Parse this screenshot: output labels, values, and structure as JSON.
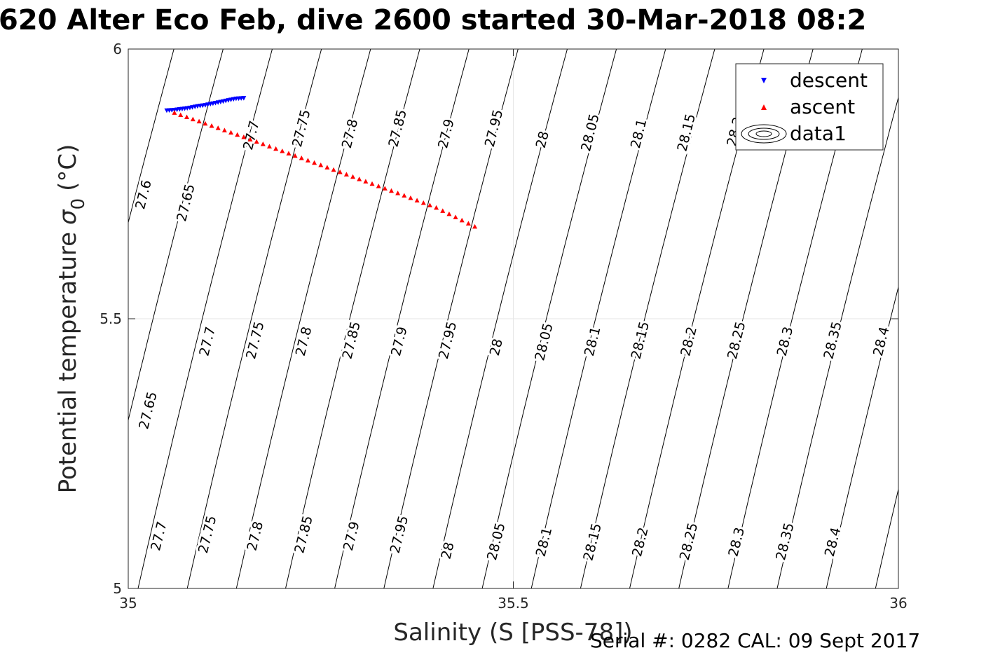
{
  "chart_data": {
    "type": "scatter",
    "title": "620 Alter Eco Feb, dive 2600 started 30-Mar-2018 08:2",
    "xlabel": "Salinity (S [PSS-78])",
    "ylabel": "Potential temperature",
    "ylabel_symbol": "σ",
    "ylabel_subscript": "0",
    "ylabel_unit": "(°C)",
    "xlim": [
      35,
      36
    ],
    "ylim": [
      5,
      6
    ],
    "x_ticks": [
      35,
      35.5,
      36
    ],
    "x_tick_labels": [
      "35",
      "35.5",
      "36"
    ],
    "y_ticks": [
      5,
      5.5,
      6
    ],
    "y_tick_labels": [
      "5",
      "5.5",
      "6"
    ],
    "grid": true,
    "legend_position": "top-right",
    "series": [
      {
        "name": "descent",
        "marker": "triangle-down",
        "color": "#0000ff",
        "points": [
          [
            35.05,
            5.886
          ],
          [
            35.06,
            5.887
          ],
          [
            35.07,
            5.889
          ],
          [
            35.08,
            5.891
          ],
          [
            35.09,
            5.894
          ],
          [
            35.1,
            5.896
          ],
          [
            35.11,
            5.899
          ],
          [
            35.12,
            5.902
          ],
          [
            35.13,
            5.905
          ],
          [
            35.14,
            5.908
          ],
          [
            35.15,
            5.909
          ]
        ]
      },
      {
        "name": "ascent",
        "marker": "triangle-up",
        "color": "#ff0000",
        "points": [
          [
            35.06,
            5.882
          ],
          [
            35.1,
            5.862
          ],
          [
            35.15,
            5.837
          ],
          [
            35.2,
            5.811
          ],
          [
            35.25,
            5.785
          ],
          [
            35.3,
            5.759
          ],
          [
            35.35,
            5.733
          ],
          [
            35.4,
            5.706
          ],
          [
            35.45,
            5.671
          ]
        ]
      },
      {
        "name": "data1",
        "marker": "contour",
        "color": "#000000",
        "contour_levels": [
          "27.6",
          "27.65",
          "27.7",
          "27.75",
          "27.8",
          "27.85",
          "27.9",
          "27.95",
          "28",
          "28.05",
          "28.1",
          "28.15",
          "28.2",
          "28.25",
          "28.3",
          "28.35",
          "28.4"
        ]
      }
    ],
    "contour_labels": [
      {
        "text": "27.6",
        "x": 35.02,
        "y": 5.73
      },
      {
        "text": "27.65",
        "x": 35.075,
        "y": 5.715
      },
      {
        "text": "27.7",
        "x": 35.16,
        "y": 5.84
      },
      {
        "text": "27.75",
        "x": 35.225,
        "y": 5.853
      },
      {
        "text": "27.8",
        "x": 35.288,
        "y": 5.843
      },
      {
        "text": "27.85",
        "x": 35.35,
        "y": 5.853
      },
      {
        "text": "27.9",
        "x": 35.413,
        "y": 5.843
      },
      {
        "text": "27.95",
        "x": 35.475,
        "y": 5.853
      },
      {
        "text": "28",
        "x": 35.538,
        "y": 5.832
      },
      {
        "text": "28.05",
        "x": 35.6,
        "y": 5.845
      },
      {
        "text": "28.1",
        "x": 35.663,
        "y": 5.843
      },
      {
        "text": "28.15",
        "x": 35.725,
        "y": 5.845
      },
      {
        "text": "28.2",
        "x": 35.788,
        "y": 5.847
      },
      {
        "text": "28.35",
        "x": 35.97,
        "y": 5.85
      },
      {
        "text": "27.65",
        "x": 35.026,
        "y": 5.33
      },
      {
        "text": "27.7",
        "x": 35.103,
        "y": 5.458
      },
      {
        "text": "27.75",
        "x": 35.165,
        "y": 5.46
      },
      {
        "text": "27.8",
        "x": 35.228,
        "y": 5.458
      },
      {
        "text": "27.85",
        "x": 35.29,
        "y": 5.46
      },
      {
        "text": "27.9",
        "x": 35.352,
        "y": 5.458
      },
      {
        "text": "27.95",
        "x": 35.415,
        "y": 5.46
      },
      {
        "text": "28",
        "x": 35.478,
        "y": 5.447
      },
      {
        "text": "28.05",
        "x": 35.54,
        "y": 5.457
      },
      {
        "text": "28.1",
        "x": 35.603,
        "y": 5.458
      },
      {
        "text": "28.15",
        "x": 35.665,
        "y": 5.46
      },
      {
        "text": "28.2",
        "x": 35.728,
        "y": 5.458
      },
      {
        "text": "28.25",
        "x": 35.79,
        "y": 5.46
      },
      {
        "text": "28.3",
        "x": 35.853,
        "y": 5.458
      },
      {
        "text": "28.35",
        "x": 35.915,
        "y": 5.46
      },
      {
        "text": "28.4",
        "x": 35.978,
        "y": 5.458
      },
      {
        "text": "27.7",
        "x": 35.04,
        "y": 5.097
      },
      {
        "text": "27.75",
        "x": 35.103,
        "y": 5.1
      },
      {
        "text": "27.8",
        "x": 35.165,
        "y": 5.097
      },
      {
        "text": "27.85",
        "x": 35.228,
        "y": 5.1
      },
      {
        "text": "27.9",
        "x": 35.29,
        "y": 5.097
      },
      {
        "text": "27.95",
        "x": 35.352,
        "y": 5.1
      },
      {
        "text": "28",
        "x": 35.415,
        "y": 5.07
      },
      {
        "text": "28.05",
        "x": 35.478,
        "y": 5.087
      },
      {
        "text": "28.1",
        "x": 35.54,
        "y": 5.086
      },
      {
        "text": "28.15",
        "x": 35.603,
        "y": 5.086
      },
      {
        "text": "28.2",
        "x": 35.665,
        "y": 5.086
      },
      {
        "text": "28.25",
        "x": 35.728,
        "y": 5.087
      },
      {
        "text": "28.3",
        "x": 35.79,
        "y": 5.086
      },
      {
        "text": "28.35",
        "x": 35.853,
        "y": 5.087
      },
      {
        "text": "28.4",
        "x": 35.915,
        "y": 5.086
      }
    ]
  },
  "footer": {
    "serial_text": "Serial #: 0282  CAL: 09 Sept 2017"
  }
}
